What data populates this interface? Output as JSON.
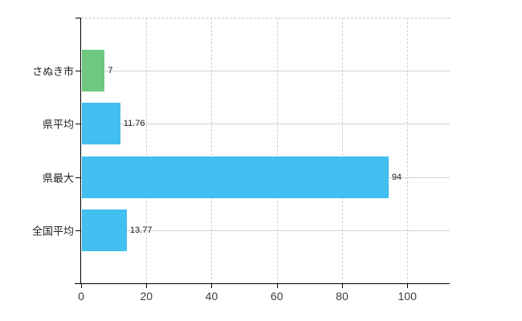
{
  "chart_data": {
    "type": "bar",
    "orientation": "horizontal",
    "title": "",
    "xlabel": "",
    "ylabel": "",
    "categories": [
      "さぬき市",
      "県平均",
      "県最大",
      "全国平均"
    ],
    "values": [
      7,
      11.76,
      94,
      13.77
    ],
    "value_labels": [
      "7",
      "11.76",
      "94",
      "13.77"
    ],
    "bar_colors": [
      "#6fc87f",
      "#42bef0",
      "#42bef0",
      "#42bef0"
    ],
    "xlim": [
      0,
      113
    ],
    "xticks": [
      0,
      20,
      40,
      60,
      80,
      100
    ],
    "xtick_labels": [
      "0",
      "20",
      "40",
      "60",
      "80",
      "100"
    ],
    "grid": true,
    "legend": false
  },
  "colors": {
    "background": "#ffffff",
    "axis": "#000000",
    "gridline": "#d2d2d2",
    "dashed_border": "#c9c9c9",
    "tick_label": "#3c3c3c",
    "category_label": "#242424",
    "value_label": "#1a1a1a"
  }
}
